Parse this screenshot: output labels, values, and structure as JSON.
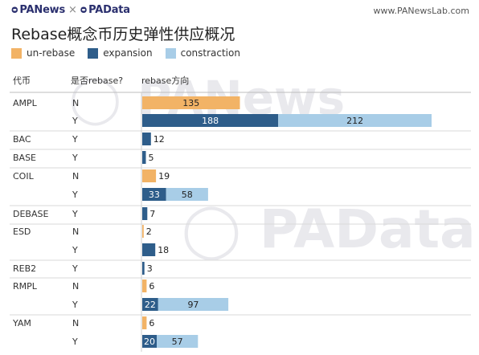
{
  "header": {
    "logo_left": "PANews",
    "logo_sep": "×",
    "logo_right": "PAData",
    "site": "www.PANewsLab.com"
  },
  "chart_data": {
    "type": "bar",
    "title": "Rebase概念币历史弹性供应概况",
    "columns": [
      "代币",
      "是否rebase?",
      "rebase方向"
    ],
    "legend": [
      {
        "name": "un-rebase",
        "color": "#f2b366"
      },
      {
        "name": "expansion",
        "color": "#2e5d8a"
      },
      {
        "name": "constraction",
        "color": "#a8cde7"
      }
    ],
    "rows": [
      {
        "token": "AMPL",
        "rebase": "N",
        "un_rebase": 135,
        "expansion": null,
        "constraction": null
      },
      {
        "token": "",
        "rebase": "Y",
        "un_rebase": null,
        "expansion": 188,
        "constraction": 212
      },
      {
        "token": "BAC",
        "rebase": "Y",
        "un_rebase": null,
        "expansion": 12,
        "constraction": null
      },
      {
        "token": "BASE",
        "rebase": "Y",
        "un_rebase": null,
        "expansion": 5,
        "constraction": null
      },
      {
        "token": "COIL",
        "rebase": "N",
        "un_rebase": 19,
        "expansion": null,
        "constraction": null
      },
      {
        "token": "",
        "rebase": "Y",
        "un_rebase": null,
        "expansion": 33,
        "constraction": 58
      },
      {
        "token": "DEBASE",
        "rebase": "Y",
        "un_rebase": null,
        "expansion": 7,
        "constraction": null
      },
      {
        "token": "ESD",
        "rebase": "N",
        "un_rebase": 2,
        "expansion": null,
        "constraction": null
      },
      {
        "token": "",
        "rebase": "Y",
        "un_rebase": null,
        "expansion": 18,
        "constraction": null
      },
      {
        "token": "REB2",
        "rebase": "Y",
        "un_rebase": null,
        "expansion": 3,
        "constraction": null
      },
      {
        "token": "RMPL",
        "rebase": "N",
        "un_rebase": 6,
        "expansion": null,
        "constraction": null
      },
      {
        "token": "",
        "rebase": "Y",
        "un_rebase": null,
        "expansion": 22,
        "constraction": 97
      },
      {
        "token": "YAM",
        "rebase": "N",
        "un_rebase": 6,
        "expansion": null,
        "constraction": null
      },
      {
        "token": "",
        "rebase": "Y",
        "un_rebase": null,
        "expansion": 20,
        "constraction": 57
      }
    ],
    "watermarks": [
      "PANews",
      "PAData"
    ]
  }
}
